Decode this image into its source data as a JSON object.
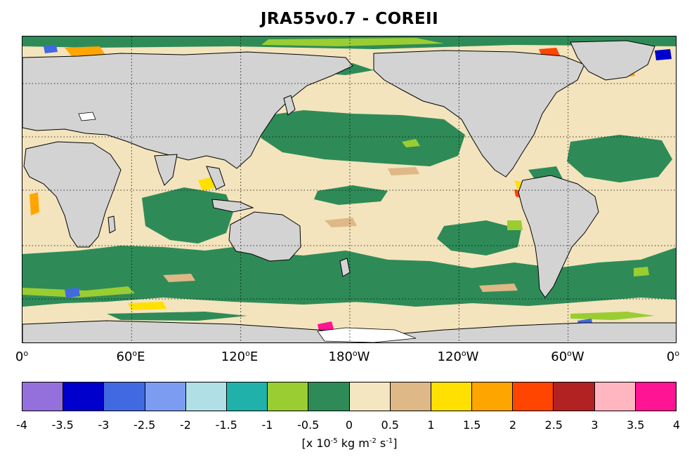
{
  "title": "JRA55v0.7 - COREII",
  "map": {
    "land_color": "#d3d3d3",
    "coast_color": "#000000"
  },
  "lon_labels": [
    {
      "value": "0",
      "suffix": ""
    },
    {
      "value": "60",
      "suffix": "E"
    },
    {
      "value": "120",
      "suffix": "E"
    },
    {
      "value": "180",
      "suffix": "W"
    },
    {
      "value": "120",
      "suffix": "W"
    },
    {
      "value": "60",
      "suffix": "W"
    },
    {
      "value": "0",
      "suffix": ""
    }
  ],
  "degree_symbol": "o",
  "colorbar": {
    "colors": [
      "#9370db",
      "#0000cd",
      "#4169e1",
      "#7b9cf0",
      "#b0dfe6",
      "#20b2aa",
      "#9acd32",
      "#2e8b57",
      "#f5e6c2",
      "#deb887",
      "#ffe000",
      "#ffa500",
      "#ff4500",
      "#b22222",
      "#ffb6c1",
      "#ff1493"
    ],
    "ticks": [
      "-4",
      "-3.5",
      "-3",
      "-2.5",
      "-2",
      "-1.5",
      "-1",
      "-0.5",
      "0",
      "0.5",
      "1",
      "1.5",
      "2",
      "2.5",
      "3",
      "3.5",
      "4"
    ]
  },
  "units": {
    "prefix": "[x 10",
    "exp1": "-5",
    "mid": " kg m",
    "exp2": "-2",
    "mid2": " s",
    "exp3": "-1",
    "suffix": "]"
  }
}
